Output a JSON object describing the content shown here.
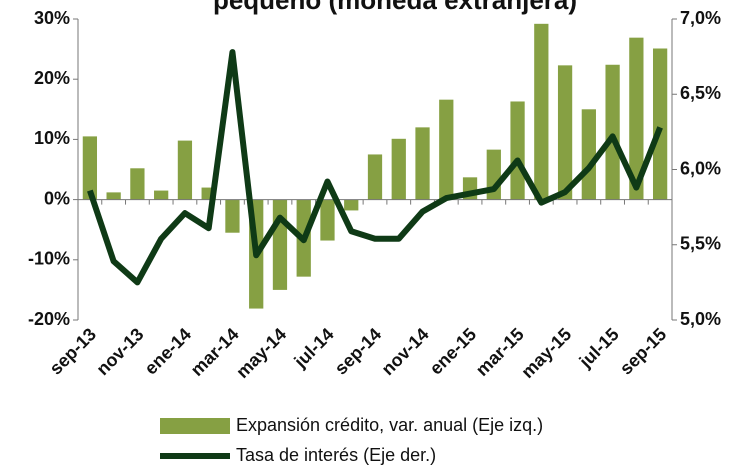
{
  "chart_data": {
    "type": "bar-line",
    "title": "pequeño (moneda extranjera)",
    "categories": [
      "sep-13",
      null,
      "nov-13",
      null,
      "ene-14",
      null,
      "mar-14",
      null,
      "may-14",
      null,
      "jul-14",
      null,
      "sep-14",
      null,
      "nov-14",
      null,
      "ene-15",
      null,
      "mar-15",
      null,
      "may-15",
      null,
      "jul-15",
      null,
      "sep-15"
    ],
    "series": [
      {
        "name": "Expansión crédito, var. anual (Eje izq.)",
        "type": "bar",
        "color": "#86a043",
        "values": [
          10.5,
          1.2,
          5.2,
          1.5,
          9.8,
          2.0,
          -5.5,
          -18.1,
          -15.0,
          -12.8,
          -6.8,
          -1.8,
          7.5,
          10.1,
          12.0,
          16.6,
          3.7,
          8.3,
          16.3,
          29.2,
          22.3,
          15.0,
          22.4,
          26.9,
          25.1
        ]
      },
      {
        "name": "Tasa de interés (Eje der.)",
        "type": "line",
        "axis": "y2",
        "color": "#0f3a16",
        "values": [
          5.86,
          5.39,
          5.25,
          5.54,
          5.71,
          5.61,
          6.78,
          5.43,
          5.68,
          5.53,
          5.92,
          5.59,
          5.54,
          5.54,
          5.72,
          5.81,
          5.84,
          5.87,
          6.06,
          5.78,
          5.85,
          6.01,
          6.22,
          5.88,
          6.28
        ]
      }
    ],
    "ylim": [
      -20,
      30
    ],
    "yticks": [
      {
        "value": -20,
        "label": "-20%"
      },
      {
        "value": -10,
        "label": "-10%"
      },
      {
        "value": 0,
        "label": "0%"
      },
      {
        "value": 10,
        "label": "10%"
      },
      {
        "value": 20,
        "label": "20%"
      },
      {
        "value": 30,
        "label": "30%"
      }
    ],
    "y2lim": [
      5.0,
      7.0
    ],
    "y2ticks": [
      {
        "value": 5.0,
        "label": "5,0%"
      },
      {
        "value": 5.5,
        "label": "5,5%"
      },
      {
        "value": 6.0,
        "label": "6,0%"
      },
      {
        "value": 6.5,
        "label": "6,5%"
      },
      {
        "value": 7.0,
        "label": "7,0%"
      }
    ]
  }
}
